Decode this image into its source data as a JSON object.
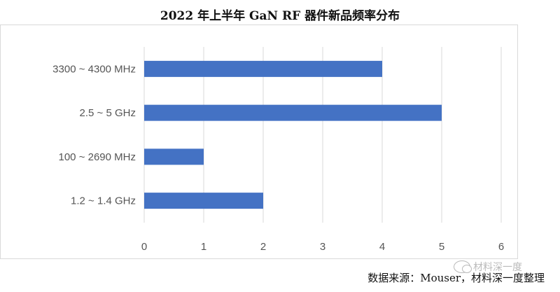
{
  "chart_data": {
    "type": "bar",
    "orientation": "horizontal",
    "title": "2022 年上半年 GaN RF 器件新品频率分布",
    "categories": [
      "3300 ~ 4300 MHz",
      "2.5 ~ 5 GHz",
      "100 ~ 2690 MHz",
      "1.2 ~ 1.4 GHz"
    ],
    "values": [
      4,
      5,
      1,
      2
    ],
    "xlim": [
      0,
      6
    ],
    "xticks": [
      "0",
      "1",
      "2",
      "3",
      "4",
      "5",
      "6"
    ],
    "grid": "vertical",
    "bar_color": "#4472C4",
    "grid_color": "#d9d9d9"
  },
  "source_text": "数据来源：Mouser，材料深一度整理",
  "watermark_text": "材料深一度",
  "watermark_icon": "wechat-icon"
}
